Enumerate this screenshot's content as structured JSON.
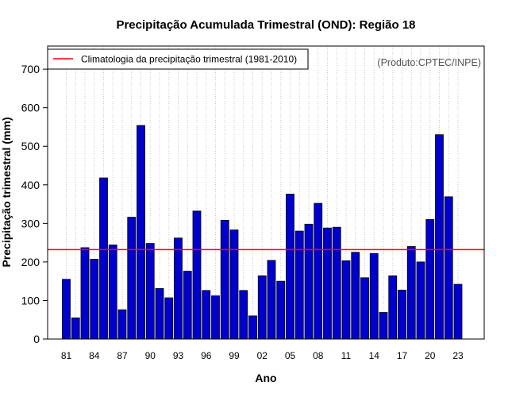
{
  "chart_data": {
    "type": "bar",
    "title": "Precipitação Acumulada Trimestral (OND): Região 18",
    "xlabel": "Ano",
    "ylabel": "Precipitação trimestral (mm)",
    "credit": "(Produto:CPTEC/INPE)",
    "ylim": [
      0,
      760
    ],
    "yticks": [
      0,
      100,
      200,
      300,
      400,
      500,
      600,
      700
    ],
    "grid": "vertical dotted",
    "legend_position": "top-left",
    "categories": [
      "81",
      "82",
      "83",
      "84",
      "85",
      "86",
      "87",
      "88",
      "89",
      "90",
      "91",
      "92",
      "93",
      "94",
      "95",
      "96",
      "97",
      "98",
      "99",
      "00",
      "01",
      "02",
      "03",
      "04",
      "05",
      "06",
      "07",
      "08",
      "09",
      "10",
      "11",
      "12",
      "13",
      "14",
      "15",
      "16",
      "17",
      "18",
      "19",
      "20",
      "21",
      "22",
      "23"
    ],
    "tick_labels": [
      "81",
      "84",
      "87",
      "90",
      "93",
      "96",
      "99",
      "02",
      "05",
      "08",
      "11",
      "14",
      "17",
      "20",
      "23"
    ],
    "series": [
      {
        "name": "Precipitação trimestral",
        "color": "#0000CC",
        "values": [
          155,
          55,
          237,
          207,
          418,
          244,
          76,
          316,
          554,
          248,
          131,
          107,
          262,
          176,
          332,
          126,
          112,
          308,
          283,
          126,
          60,
          164,
          204,
          150,
          376,
          280,
          298,
          352,
          288,
          290,
          203,
          225,
          159,
          222,
          69,
          164,
          127,
          240,
          200,
          310,
          530,
          369,
          142
        ]
      }
    ],
    "reference_line": {
      "label": "Climatologia da precipitação trimestral (1981-2010)",
      "value": 232,
      "color": "#FF0000"
    }
  }
}
